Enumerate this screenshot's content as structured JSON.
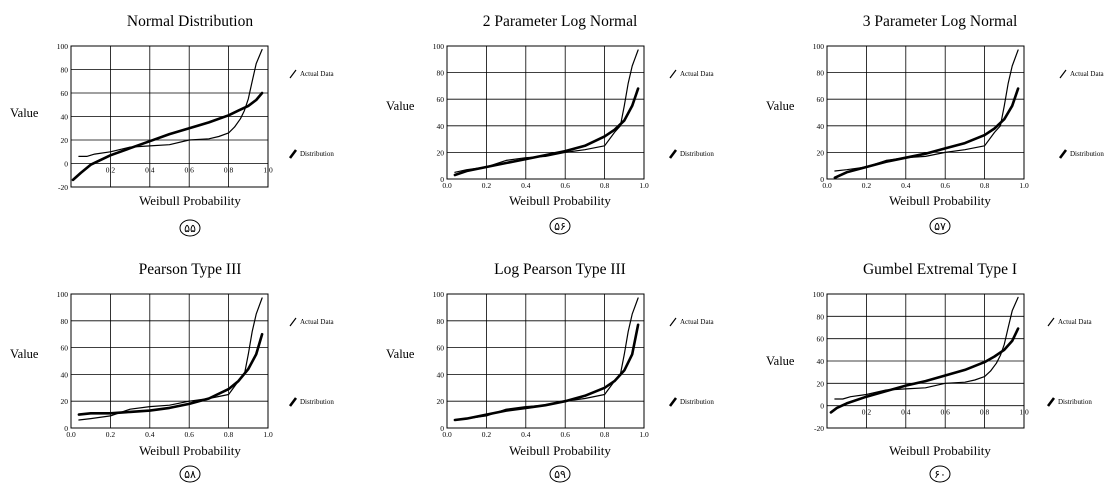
{
  "panels": [
    {
      "number": "۵۵",
      "chart_data": {
        "type": "line",
        "title": "Normal Distribution",
        "xlabel": "Weibull Probability",
        "ylabel": "Value",
        "xlim": [
          0,
          1
        ],
        "ylim": [
          -20,
          100
        ],
        "xticks": [
          "0.2",
          "0.4",
          "0.6",
          "0.8",
          "1.0"
        ],
        "yticks": [
          "-20",
          "0",
          "20",
          "40",
          "60",
          "80",
          "100"
        ],
        "grid": true,
        "legend_position": "right",
        "series": [
          {
            "name": "Actual Data",
            "x": [
              0.04,
              0.08,
              0.12,
              0.2,
              0.3,
              0.4,
              0.5,
              0.6,
              0.7,
              0.75,
              0.8,
              0.83,
              0.86,
              0.88,
              0.9,
              0.92,
              0.94,
              0.97
            ],
            "y": [
              6,
              6,
              8,
              10,
              14,
              15,
              16,
              20,
              21,
              23,
              26,
              31,
              38,
              45,
              55,
              70,
              85,
              97
            ]
          },
          {
            "name": "Distribution",
            "x": [
              0.01,
              0.05,
              0.1,
              0.2,
              0.3,
              0.4,
              0.5,
              0.6,
              0.7,
              0.8,
              0.85,
              0.9,
              0.94,
              0.97
            ],
            "y": [
              -14,
              -8,
              -1,
              7,
              13,
              19,
              25,
              30,
              35,
              41,
              45,
              49,
              54,
              60
            ]
          }
        ]
      }
    },
    {
      "number": "۵۶",
      "chart_data": {
        "type": "line",
        "title": "2 Parameter Log Normal",
        "xlabel": "Weibull Probability",
        "ylabel": "Value",
        "xlim": [
          0,
          1
        ],
        "ylim": [
          0,
          100
        ],
        "xticks": [
          "0.0",
          "0.2",
          "0.4",
          "0.6",
          "0.8",
          "1.0"
        ],
        "yticks": [
          "0",
          "20",
          "40",
          "60",
          "80",
          "100"
        ],
        "grid": true,
        "legend_position": "right",
        "series": [
          {
            "name": "Actual Data",
            "x": [
              0.04,
              0.1,
              0.2,
              0.3,
              0.4,
              0.5,
              0.6,
              0.7,
              0.8,
              0.85,
              0.88,
              0.9,
              0.92,
              0.94,
              0.97
            ],
            "y": [
              5,
              7,
              9,
              14,
              16,
              17,
              20,
              22,
              25,
              35,
              40,
              55,
              72,
              85,
              97
            ]
          },
          {
            "name": "Distribution",
            "x": [
              0.04,
              0.1,
              0.2,
              0.3,
              0.4,
              0.5,
              0.6,
              0.7,
              0.8,
              0.85,
              0.9,
              0.94,
              0.97
            ],
            "y": [
              3,
              6,
              9,
              12,
              15,
              18,
              21,
              25,
              32,
              37,
              44,
              55,
              68
            ]
          }
        ]
      }
    },
    {
      "number": "۵۷",
      "chart_data": {
        "type": "line",
        "title": "3 Parameter Log Normal",
        "xlabel": "Weibull Probability",
        "ylabel": "Value",
        "xlim": [
          0,
          1
        ],
        "ylim": [
          0,
          100
        ],
        "xticks": [
          "0.0",
          "0.2",
          "0.4",
          "0.6",
          "0.8",
          "1.0"
        ],
        "yticks": [
          "0",
          "20",
          "40",
          "60",
          "80",
          "100"
        ],
        "grid": true,
        "legend_position": "right",
        "series": [
          {
            "name": "Actual Data",
            "x": [
              0.04,
              0.1,
              0.2,
              0.3,
              0.4,
              0.5,
              0.6,
              0.7,
              0.8,
              0.85,
              0.88,
              0.9,
              0.92,
              0.94,
              0.97
            ],
            "y": [
              6,
              7,
              9,
              14,
              16,
              17,
              20,
              22,
              25,
              35,
              40,
              55,
              72,
              85,
              97
            ]
          },
          {
            "name": "Distribution",
            "x": [
              0.04,
              0.1,
              0.2,
              0.3,
              0.4,
              0.5,
              0.6,
              0.7,
              0.8,
              0.85,
              0.9,
              0.94,
              0.97
            ],
            "y": [
              1,
              5,
              9,
              13,
              16,
              19,
              23,
              27,
              33,
              38,
              45,
              55,
              68
            ]
          }
        ]
      }
    },
    {
      "number": "۵۸",
      "chart_data": {
        "type": "line",
        "title": "Pearson Type III",
        "xlabel": "Weibull Probability",
        "ylabel": "Value",
        "xlim": [
          0,
          1
        ],
        "ylim": [
          0,
          100
        ],
        "xticks": [
          "0.0",
          "0.2",
          "0.4",
          "0.6",
          "0.8",
          "1.0"
        ],
        "yticks": [
          "0",
          "20",
          "40",
          "60",
          "80",
          "100"
        ],
        "grid": true,
        "legend_position": "right",
        "series": [
          {
            "name": "Actual Data",
            "x": [
              0.04,
              0.1,
              0.2,
              0.3,
              0.4,
              0.5,
              0.6,
              0.7,
              0.8,
              0.85,
              0.88,
              0.9,
              0.92,
              0.94,
              0.97
            ],
            "y": [
              6,
              7,
              9,
              14,
              16,
              17,
              20,
              22,
              25,
              35,
              40,
              55,
              72,
              85,
              97
            ]
          },
          {
            "name": "Distribution",
            "x": [
              0.04,
              0.1,
              0.2,
              0.3,
              0.4,
              0.5,
              0.6,
              0.7,
              0.8,
              0.85,
              0.9,
              0.94,
              0.97
            ],
            "y": [
              10,
              11,
              11,
              12,
              13,
              15,
              18,
              22,
              29,
              35,
              44,
              55,
              70
            ]
          }
        ]
      }
    },
    {
      "number": "۵۹",
      "chart_data": {
        "type": "line",
        "title": "Log Pearson Type III",
        "xlabel": "Weibull Probability",
        "ylabel": "Value",
        "xlim": [
          0,
          1
        ],
        "ylim": [
          0,
          100
        ],
        "xticks": [
          "0.0",
          "0.2",
          "0.4",
          "0.6",
          "0.8",
          "1.0"
        ],
        "yticks": [
          "0",
          "20",
          "40",
          "60",
          "80",
          "100"
        ],
        "grid": true,
        "legend_position": "right",
        "series": [
          {
            "name": "Actual Data",
            "x": [
              0.04,
              0.1,
              0.2,
              0.3,
              0.4,
              0.5,
              0.6,
              0.7,
              0.8,
              0.85,
              0.88,
              0.9,
              0.92,
              0.94,
              0.97
            ],
            "y": [
              6,
              7,
              9,
              14,
              16,
              17,
              20,
              22,
              25,
              35,
              40,
              55,
              72,
              85,
              97
            ]
          },
          {
            "name": "Distribution",
            "x": [
              0.04,
              0.1,
              0.2,
              0.3,
              0.4,
              0.5,
              0.6,
              0.7,
              0.8,
              0.85,
              0.9,
              0.94,
              0.97
            ],
            "y": [
              6,
              7,
              10,
              13,
              15,
              17,
              20,
              24,
              30,
              35,
              43,
              55,
              77
            ]
          }
        ]
      }
    },
    {
      "number": "۶۰",
      "chart_data": {
        "type": "line",
        "title": "Gumbel Extremal Type I",
        "xlabel": "Weibull Probability",
        "ylabel": "Value",
        "xlim": [
          0,
          1
        ],
        "ylim": [
          -20,
          100
        ],
        "xticks": [
          "0.2",
          "0.4",
          "0.6",
          "0.8",
          "1.0"
        ],
        "yticks": [
          "-20",
          "0",
          "20",
          "40",
          "60",
          "80",
          "100"
        ],
        "grid": true,
        "legend_position": "right",
        "series": [
          {
            "name": "Actual Data",
            "x": [
              0.04,
              0.08,
              0.12,
              0.2,
              0.3,
              0.4,
              0.5,
              0.6,
              0.7,
              0.75,
              0.8,
              0.83,
              0.86,
              0.88,
              0.9,
              0.92,
              0.94,
              0.97
            ],
            "y": [
              6,
              6,
              8,
              10,
              14,
              15,
              16,
              20,
              21,
              23,
              26,
              31,
              38,
              45,
              55,
              70,
              85,
              97
            ]
          },
          {
            "name": "Distribution",
            "x": [
              0.02,
              0.05,
              0.1,
              0.2,
              0.3,
              0.4,
              0.5,
              0.6,
              0.7,
              0.8,
              0.85,
              0.9,
              0.94,
              0.97
            ],
            "y": [
              -6,
              -2,
              2,
              8,
              13,
              18,
              22,
              27,
              32,
              39,
              44,
              50,
              58,
              69
            ]
          }
        ]
      }
    }
  ]
}
